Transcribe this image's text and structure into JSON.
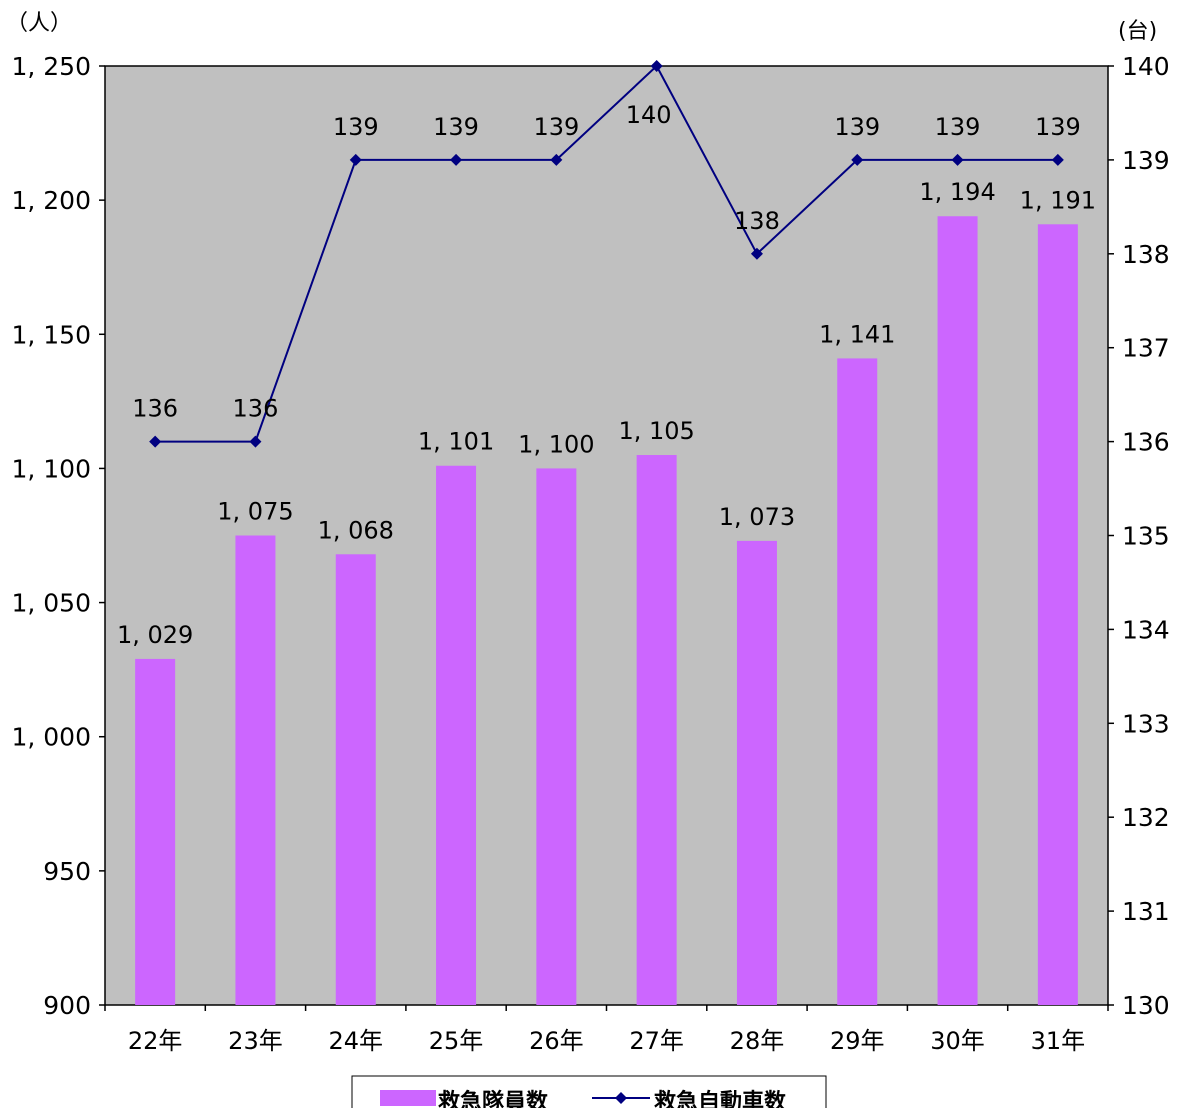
{
  "chart_data": {
    "type": "bar+line",
    "categories": [
      "22年",
      "23年",
      "24年",
      "25年",
      "26年",
      "27年",
      "28年",
      "29年",
      "30年",
      "31年"
    ],
    "series": [
      {
        "name": "救急隊員数",
        "type": "bar",
        "axis": "left",
        "values": [
          1029,
          1075,
          1068,
          1101,
          1100,
          1105,
          1073,
          1141,
          1194,
          1191
        ],
        "labels": [
          "1, 029",
          "1, 075",
          "1, 068",
          "1, 101",
          "1, 100",
          "1, 105",
          "1, 073",
          "1, 141",
          "1, 194",
          "1, 191"
        ]
      },
      {
        "name": "救急自動車数",
        "type": "line",
        "axis": "right",
        "marker": "diamond",
        "values": [
          136,
          136,
          139,
          139,
          139,
          140,
          138,
          139,
          139,
          139
        ],
        "labels": [
          "136",
          "136",
          "139",
          "139",
          "139",
          "140",
          "138",
          "139",
          "139",
          "139"
        ]
      }
    ],
    "left_axis": {
      "unit": "（人）",
      "ylim": [
        900,
        1250
      ],
      "ticks": [
        900,
        950,
        1000,
        1050,
        1100,
        1150,
        1200,
        1250
      ],
      "tick_labels": [
        "900",
        "950",
        "1, 000",
        "1, 050",
        "1, 100",
        "1, 150",
        "1, 200",
        "1, 250"
      ]
    },
    "right_axis": {
      "unit": "(台)",
      "ylim": [
        130,
        140
      ],
      "ticks": [
        130,
        131,
        132,
        133,
        134,
        135,
        136,
        137,
        138,
        139,
        140
      ],
      "tick_labels": [
        "130",
        "131",
        "132",
        "133",
        "134",
        "135",
        "136",
        "137",
        "138",
        "139",
        "140"
      ]
    },
    "grid": false,
    "legend_position": "bottom",
    "colors": {
      "plot_background": "#c0c0c0",
      "bar": "#cc66ff",
      "line": "#000080"
    }
  }
}
